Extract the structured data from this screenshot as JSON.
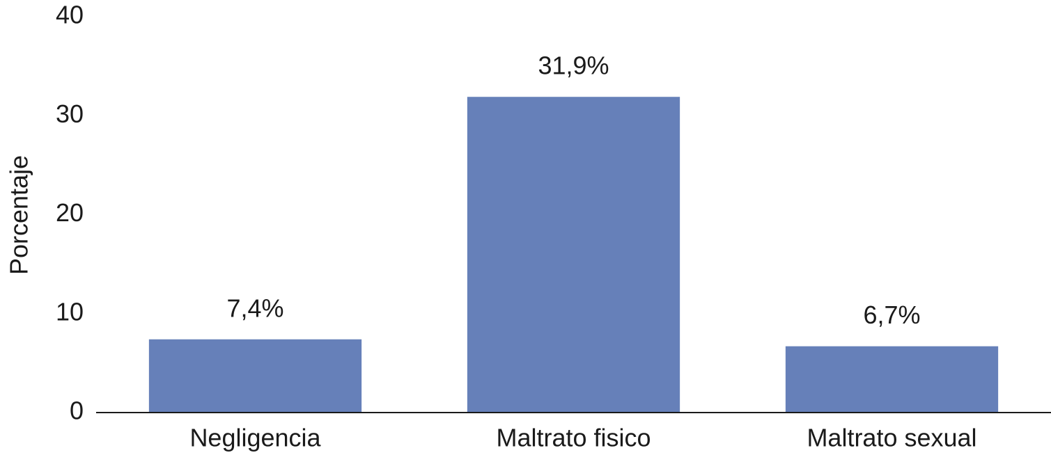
{
  "chart_data": {
    "type": "bar",
    "y_label": "Porcentaje",
    "categories": [
      "Negligencia",
      "Maltrato fisico",
      "Maltrato sexual"
    ],
    "values": [
      7.4,
      31.9,
      6.7
    ],
    "value_labels": [
      "7,4%",
      "31,9%",
      "6,7%"
    ],
    "color": "#6680b9",
    "ylim": [
      0,
      40
    ],
    "yticks": [
      0,
      10,
      20,
      30,
      40
    ],
    "grid": false
  }
}
